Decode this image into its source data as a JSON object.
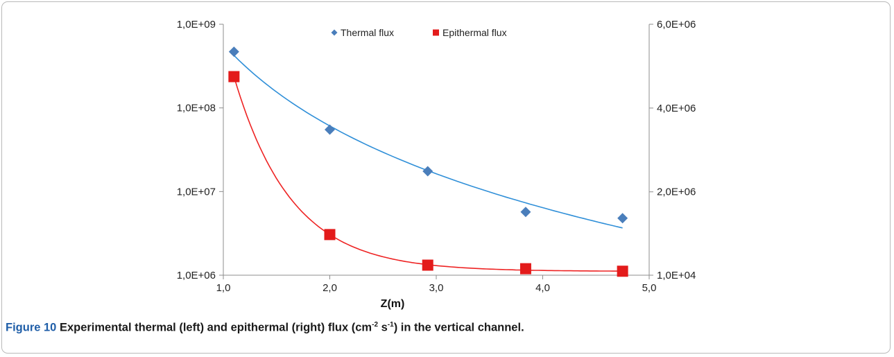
{
  "caption": {
    "label": "Figure 10",
    "text_before": " Experimental thermal (left) and epithermal (right) flux (cm",
    "sup1": "-2",
    "text_middle": " s",
    "sup2": "-1",
    "text_after": ") in the vertical channel."
  },
  "chart_data": {
    "type": "scatter",
    "title": "",
    "xlabel": "Z(m)",
    "ylabel_left": "",
    "ylabel_right": "",
    "xlim": [
      1.0,
      5.0
    ],
    "x_ticks": [
      "1,0",
      "2,0",
      "3,0",
      "4,0",
      "5,0"
    ],
    "x_tick_values": [
      1.0,
      2.0,
      3.0,
      4.0,
      5.0
    ],
    "y_left": {
      "scale": "log",
      "lim": [
        1000000,
        1000000000
      ],
      "ticks": [
        "1,0E+06",
        "1,0E+07",
        "1,0E+08",
        "1,0E+09"
      ],
      "tick_values": [
        1000000,
        10000000,
        100000000,
        1000000000
      ]
    },
    "y_right": {
      "scale": "linear",
      "lim": [
        10000,
        6000000
      ],
      "ticks": [
        "1,0E+04",
        "2,0E+06",
        "4,0E+06",
        "6,0E+06"
      ],
      "tick_values": [
        10000,
        2000000,
        4000000,
        6000000
      ]
    },
    "legend_position": "top-center",
    "grid": false,
    "series": [
      {
        "name": "Thermal flux",
        "axis": "left",
        "marker": "diamond",
        "color": "#4a7ebb",
        "trend_color": "#2f8fd8",
        "x": [
          1.1,
          2.0,
          2.92,
          3.84,
          4.75
        ],
        "y": [
          470000000,
          55000000,
          17500000,
          5700000,
          4800000
        ]
      },
      {
        "name": "Epithermal flux",
        "axis": "right",
        "marker": "square",
        "color": "#e31b1b",
        "trend_color": "#ee2222",
        "x": [
          1.1,
          2.0,
          2.92,
          3.84,
          4.75
        ],
        "y": [
          4750000,
          980000,
          250000,
          165000,
          105000
        ]
      }
    ]
  }
}
